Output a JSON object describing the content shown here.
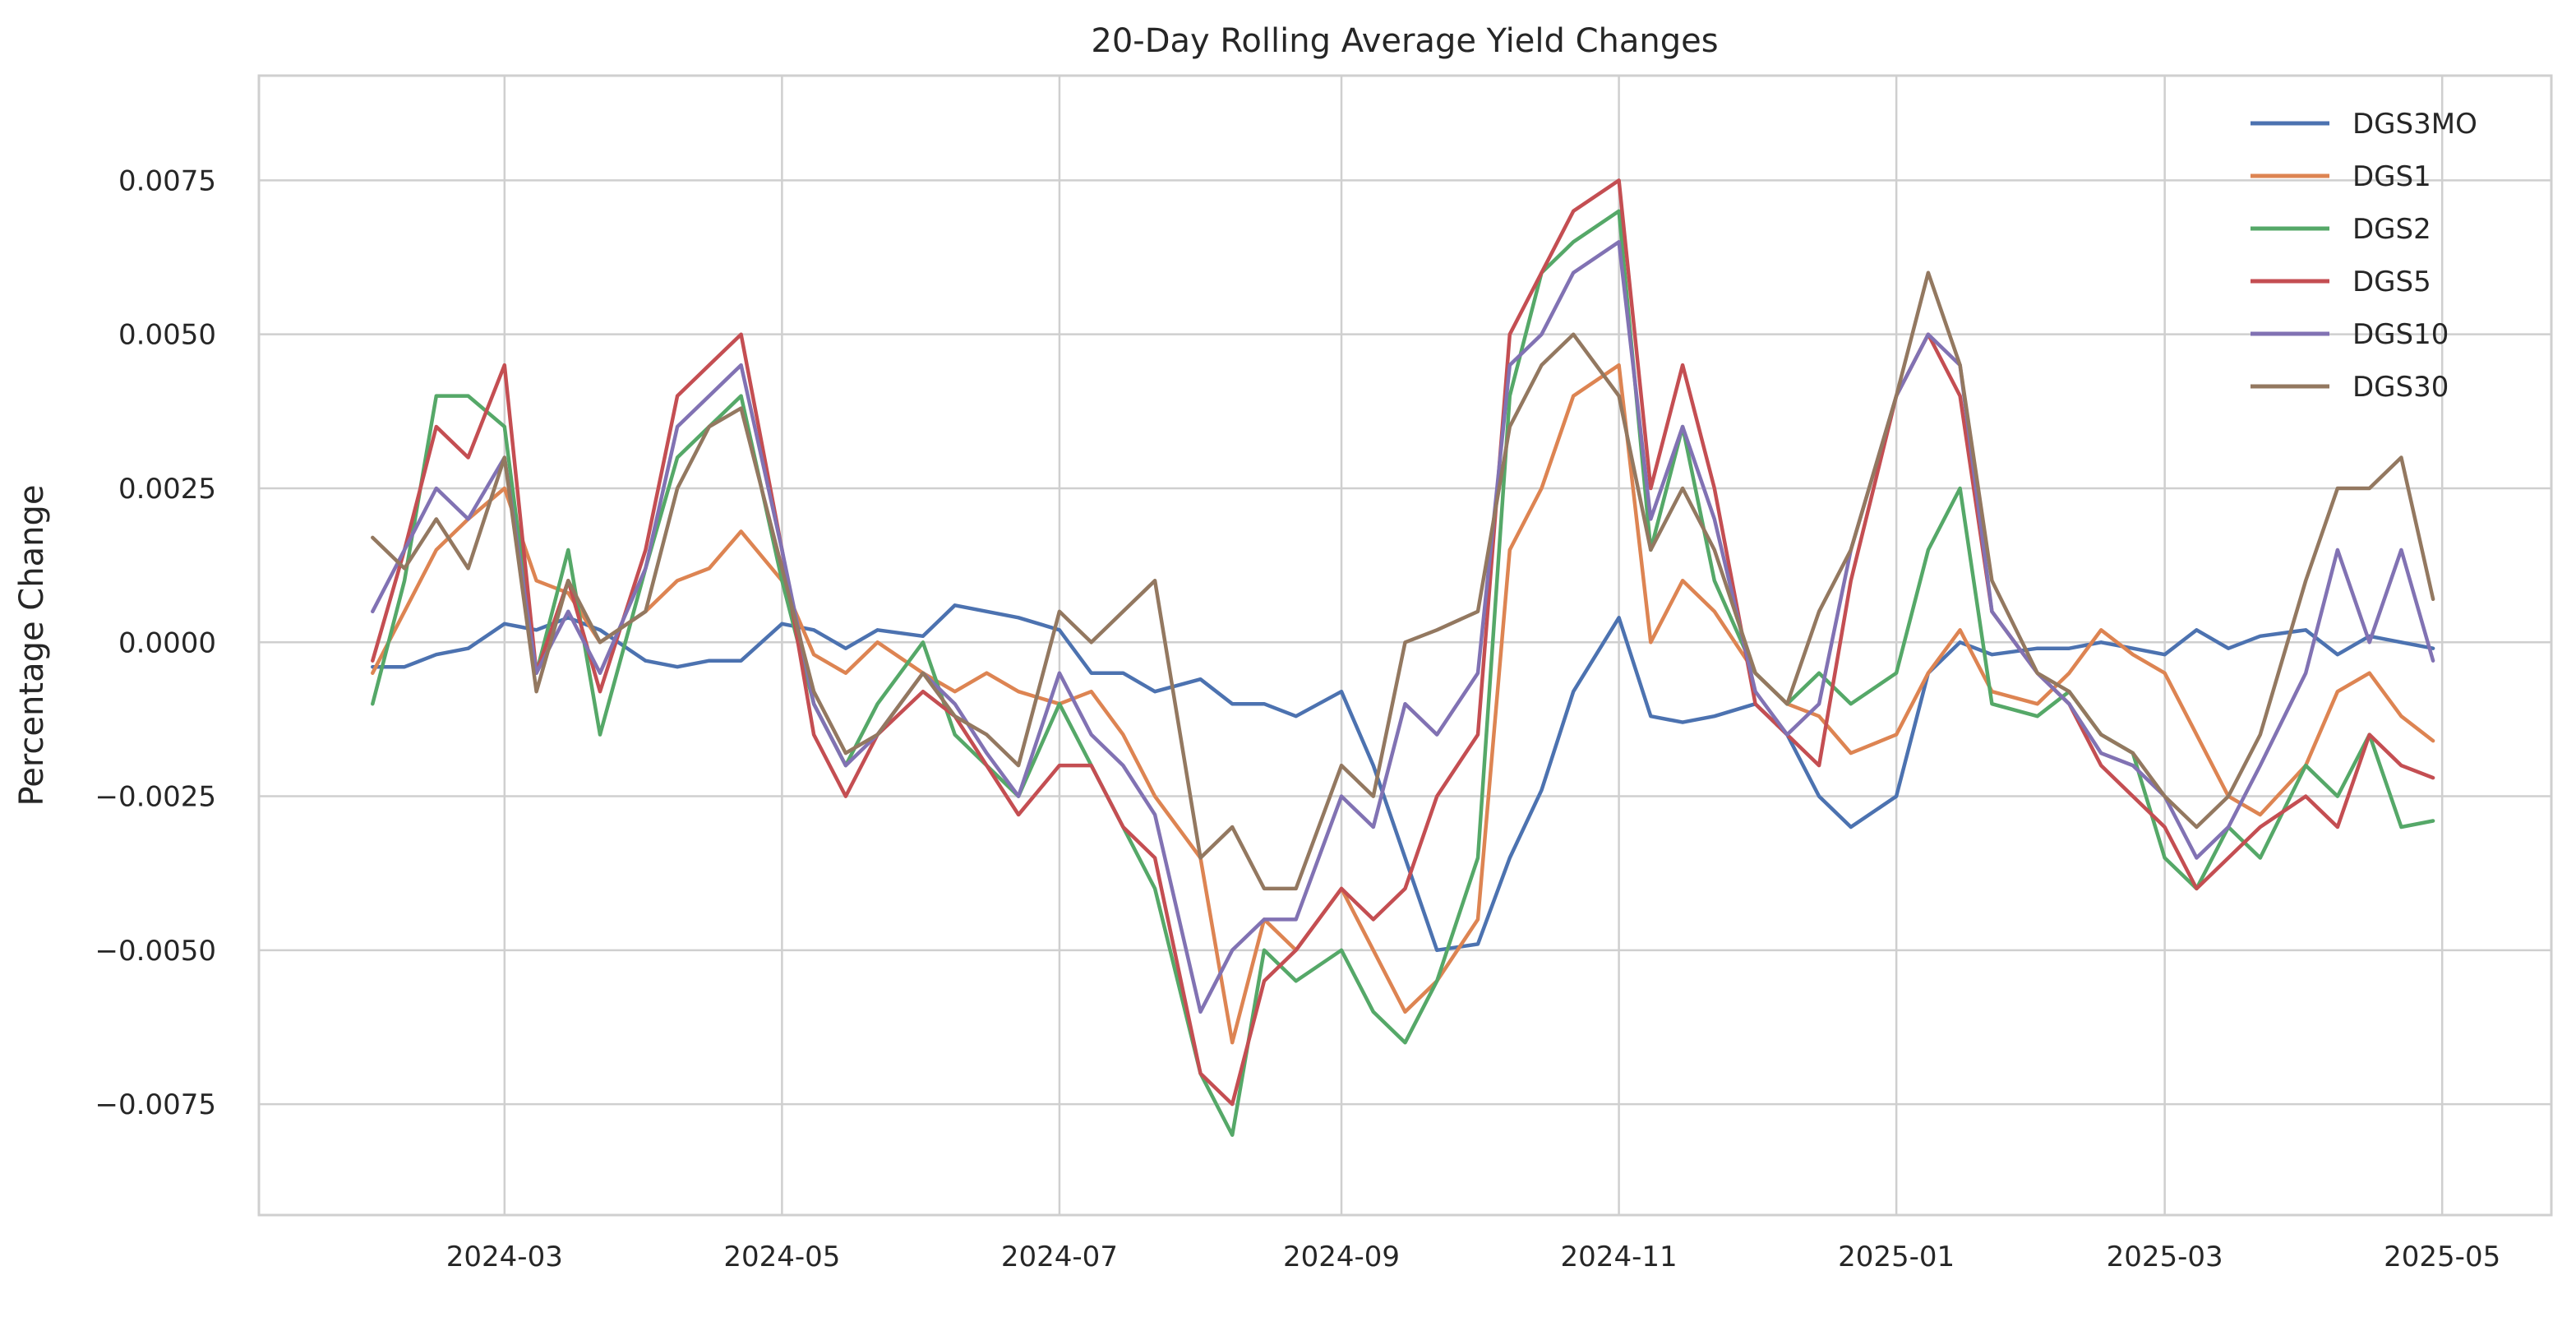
{
  "chart_data": {
    "type": "line",
    "title": "20-Day Rolling Average Yield Changes",
    "xlabel": "",
    "ylabel": "Percentage Change",
    "x_range": [
      "2024-01-07",
      "2025-05-25"
    ],
    "ylim": [
      -0.0093,
      0.0092
    ],
    "grid": true,
    "legend_position": "top-right",
    "x_tick_labels": [
      "2024-03",
      "2024-05",
      "2024-07",
      "2024-09",
      "2024-11",
      "2025-01",
      "2025-03",
      "2025-05"
    ],
    "x_ticks": [
      "2024-03-01",
      "2024-05-01",
      "2024-07-01",
      "2024-09-01",
      "2024-11-01",
      "2025-01-01",
      "2025-03-01",
      "2025-05-01"
    ],
    "y_ticks": [
      -0.0075,
      -0.005,
      -0.0025,
      0.0,
      0.0025,
      0.005,
      0.0075
    ],
    "y_tick_labels": [
      "−0.0075",
      "−0.0050",
      "−0.0025",
      "0.0000",
      "0.0025",
      "0.0050",
      "0.0075"
    ],
    "dates": [
      "2024-02-01",
      "2024-02-08",
      "2024-02-15",
      "2024-02-22",
      "2024-03-01",
      "2024-03-08",
      "2024-03-15",
      "2024-03-22",
      "2024-04-01",
      "2024-04-08",
      "2024-04-15",
      "2024-04-22",
      "2024-05-01",
      "2024-05-08",
      "2024-05-15",
      "2024-05-22",
      "2024-06-01",
      "2024-06-08",
      "2024-06-15",
      "2024-06-22",
      "2024-07-01",
      "2024-07-08",
      "2024-07-15",
      "2024-07-22",
      "2024-08-01",
      "2024-08-08",
      "2024-08-15",
      "2024-08-22",
      "2024-09-01",
      "2024-09-08",
      "2024-09-15",
      "2024-09-22",
      "2024-10-01",
      "2024-10-08",
      "2024-10-15",
      "2024-10-22",
      "2024-11-01",
      "2024-11-08",
      "2024-11-15",
      "2024-11-22",
      "2024-12-01",
      "2024-12-08",
      "2024-12-15",
      "2024-12-22",
      "2025-01-01",
      "2025-01-08",
      "2025-01-15",
      "2025-01-22",
      "2025-02-01",
      "2025-02-08",
      "2025-02-15",
      "2025-02-22",
      "2025-03-01",
      "2025-03-08",
      "2025-03-15",
      "2025-03-22",
      "2025-04-01",
      "2025-04-08",
      "2025-04-15",
      "2025-04-22",
      "2025-04-29"
    ],
    "series": [
      {
        "name": "DGS3MO",
        "color": "#4c72b0",
        "values": [
          -0.0004,
          -0.0004,
          -0.0002,
          -0.0001,
          0.0003,
          0.0002,
          0.0004,
          0.0002,
          -0.0003,
          -0.0004,
          -0.0003,
          -0.0003,
          0.0003,
          0.0002,
          -0.0001,
          0.0002,
          0.0001,
          0.0006,
          0.0005,
          0.0004,
          0.0002,
          -0.0005,
          -0.0005,
          -0.0008,
          -0.0006,
          -0.001,
          -0.001,
          -0.0012,
          -0.0008,
          -0.002,
          -0.0035,
          -0.005,
          -0.0049,
          -0.0035,
          -0.0024,
          -0.0008,
          0.0004,
          -0.0012,
          -0.0013,
          -0.0012,
          -0.001,
          -0.0015,
          -0.0025,
          -0.003,
          -0.0025,
          -0.0005,
          0.0,
          -0.0002,
          -0.0001,
          -0.0001,
          0.0,
          -0.0001,
          -0.0002,
          0.0002,
          -0.0001,
          0.0001,
          0.0002,
          -0.0002,
          0.0001,
          0.0,
          -0.0001
        ]
      },
      {
        "name": "DGS1",
        "color": "#dd8452",
        "values": [
          -0.0005,
          0.0005,
          0.0015,
          0.002,
          0.0025,
          0.001,
          0.0008,
          0.0,
          0.0005,
          0.001,
          0.0012,
          0.0018,
          0.001,
          -0.0002,
          -0.0005,
          0.0,
          -0.0005,
          -0.0008,
          -0.0005,
          -0.0008,
          -0.001,
          -0.0008,
          -0.0015,
          -0.0025,
          -0.0035,
          -0.0065,
          -0.0045,
          -0.005,
          -0.004,
          -0.005,
          -0.006,
          -0.0055,
          -0.0045,
          0.0015,
          0.0025,
          0.004,
          0.0045,
          0.0,
          0.001,
          0.0005,
          -0.0005,
          -0.001,
          -0.0012,
          -0.0018,
          -0.0015,
          -0.0005,
          0.0002,
          -0.0008,
          -0.001,
          -0.0005,
          0.0002,
          -0.0002,
          -0.0005,
          -0.0015,
          -0.0025,
          -0.0028,
          -0.002,
          -0.0008,
          -0.0005,
          -0.0012,
          -0.0016
        ]
      },
      {
        "name": "DGS2",
        "color": "#55a868",
        "values": [
          -0.001,
          0.001,
          0.004,
          0.004,
          0.0035,
          -0.0005,
          0.0015,
          -0.0015,
          0.0012,
          0.003,
          0.0035,
          0.004,
          0.001,
          -0.001,
          -0.002,
          -0.001,
          0.0,
          -0.0015,
          -0.002,
          -0.0025,
          -0.001,
          -0.002,
          -0.003,
          -0.004,
          -0.007,
          -0.008,
          -0.005,
          -0.0055,
          -0.005,
          -0.006,
          -0.0065,
          -0.0055,
          -0.0035,
          0.004,
          0.006,
          0.0065,
          0.007,
          0.0015,
          0.0035,
          0.001,
          -0.0005,
          -0.001,
          -0.0005,
          -0.001,
          -0.0005,
          0.0015,
          0.0025,
          -0.001,
          -0.0012,
          -0.0008,
          -0.0015,
          -0.0018,
          -0.0035,
          -0.004,
          -0.003,
          -0.0035,
          -0.002,
          -0.0025,
          -0.0015,
          -0.003,
          -0.0029
        ]
      },
      {
        "name": "DGS5",
        "color": "#c44e52",
        "values": [
          -0.0003,
          0.0015,
          0.0035,
          0.003,
          0.0045,
          -0.0005,
          0.001,
          -0.0008,
          0.0015,
          0.004,
          0.0045,
          0.005,
          0.0015,
          -0.0015,
          -0.0025,
          -0.0015,
          -0.0008,
          -0.0012,
          -0.002,
          -0.0028,
          -0.002,
          -0.002,
          -0.003,
          -0.0035,
          -0.007,
          -0.0075,
          -0.0055,
          -0.005,
          -0.004,
          -0.0045,
          -0.004,
          -0.0025,
          -0.0015,
          0.005,
          0.006,
          0.007,
          0.0075,
          0.0025,
          0.0045,
          0.0025,
          -0.001,
          -0.0015,
          -0.002,
          0.001,
          0.004,
          0.005,
          0.004,
          0.0005,
          -0.0005,
          -0.001,
          -0.002,
          -0.0025,
          -0.003,
          -0.004,
          -0.0035,
          -0.003,
          -0.0025,
          -0.003,
          -0.0015,
          -0.002,
          -0.0022
        ]
      },
      {
        "name": "DGS10",
        "color": "#8172b3",
        "values": [
          0.0005,
          0.0015,
          0.0025,
          0.002,
          0.003,
          -0.0005,
          0.0005,
          -0.0005,
          0.0012,
          0.0035,
          0.004,
          0.0045,
          0.0015,
          -0.001,
          -0.002,
          -0.0015,
          -0.0005,
          -0.001,
          -0.0018,
          -0.0025,
          -0.0005,
          -0.0015,
          -0.002,
          -0.0028,
          -0.006,
          -0.005,
          -0.0045,
          -0.0045,
          -0.0025,
          -0.003,
          -0.001,
          -0.0015,
          -0.0005,
          0.0045,
          0.005,
          0.006,
          0.0065,
          0.002,
          0.0035,
          0.002,
          -0.0008,
          -0.0015,
          -0.001,
          0.0015,
          0.004,
          0.005,
          0.0045,
          0.0005,
          -0.0005,
          -0.001,
          -0.0018,
          -0.002,
          -0.0025,
          -0.0035,
          -0.003,
          -0.002,
          -0.0005,
          0.0015,
          0.0,
          0.0015,
          -0.0003
        ]
      },
      {
        "name": "DGS30",
        "color": "#937860",
        "values": [
          0.0017,
          0.0012,
          0.002,
          0.0012,
          0.003,
          -0.0008,
          0.001,
          0.0,
          0.0005,
          0.0025,
          0.0035,
          0.0038,
          0.0012,
          -0.0008,
          -0.0018,
          -0.0015,
          -0.0005,
          -0.0012,
          -0.0015,
          -0.002,
          0.0005,
          0.0,
          0.0005,
          0.001,
          -0.0035,
          -0.003,
          -0.004,
          -0.004,
          -0.002,
          -0.0025,
          0.0,
          0.0002,
          0.0005,
          0.0035,
          0.0045,
          0.005,
          0.004,
          0.0015,
          0.0025,
          0.0015,
          -0.0005,
          -0.001,
          0.0005,
          0.0015,
          0.004,
          0.006,
          0.0045,
          0.001,
          -0.0005,
          -0.0008,
          -0.0015,
          -0.0018,
          -0.0025,
          -0.003,
          -0.0025,
          -0.0015,
          0.001,
          0.0025,
          0.0025,
          0.003,
          0.0007
        ]
      }
    ]
  }
}
